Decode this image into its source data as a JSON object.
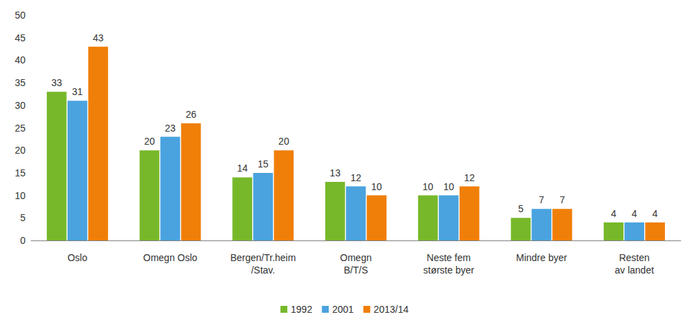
{
  "chart_data": {
    "type": "bar",
    "categories": [
      "Oslo",
      "Omegn Oslo",
      "Bergen/Tr.heim\n/Stav.",
      "Omegn\nB/T/S",
      "Neste fem\nstørste byer",
      "Mindre byer",
      "Resten\nav landet"
    ],
    "series": [
      {
        "name": "1992",
        "color": "#77b82a",
        "values": [
          33,
          20,
          14,
          13,
          10,
          5,
          4
        ]
      },
      {
        "name": "2001",
        "color": "#4aa3df",
        "values": [
          31,
          23,
          15,
          12,
          10,
          7,
          4
        ]
      },
      {
        "name": "2013/14",
        "color": "#f07f09",
        "values": [
          43,
          26,
          20,
          10,
          12,
          7,
          4
        ]
      }
    ],
    "ylim": [
      0,
      50
    ],
    "yticks": [
      0,
      5,
      10,
      15,
      20,
      25,
      30,
      35,
      40,
      45,
      50
    ],
    "grid": false,
    "data_labels": true,
    "legend": "bottom"
  }
}
